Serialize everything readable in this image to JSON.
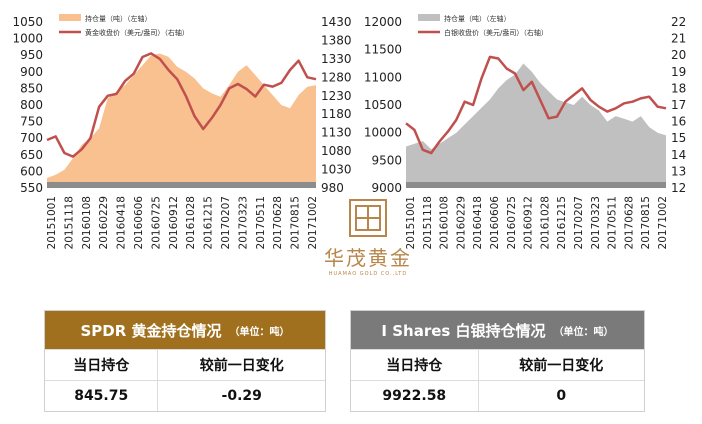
{
  "chart_data": [
    {
      "type": "area+line",
      "series": [
        {
          "name": "持仓量（吨）（左轴）",
          "kind": "area",
          "color": "#f9c090",
          "values": [
            580,
            590,
            605,
            640,
            680,
            700,
            730,
            820,
            840,
            860,
            890,
            920,
            950,
            955,
            945,
            915,
            900,
            880,
            850,
            835,
            825,
            860,
            900,
            920,
            890,
            860,
            830,
            800,
            790,
            830,
            855,
            860
          ]
        },
        {
          "name": "黄金收盘价（美元/盎司）（右轴）",
          "kind": "line",
          "color": "#c0504d",
          "values": [
            1110,
            1120,
            1075,
            1065,
            1085,
            1115,
            1200,
            1230,
            1235,
            1270,
            1290,
            1335,
            1345,
            1330,
            1300,
            1275,
            1230,
            1175,
            1140,
            1170,
            1205,
            1250,
            1262,
            1248,
            1228,
            1260,
            1255,
            1265,
            1300,
            1325,
            1280,
            1275
          ]
        }
      ],
      "x_labels": [
        "20151001",
        "20151118",
        "20160108",
        "20160229",
        "20160418",
        "20160606",
        "20160725",
        "20160912",
        "20161028",
        "20161215",
        "20170207",
        "20170323",
        "20170511",
        "20170628",
        "20170815",
        "20171002"
      ],
      "y_left": {
        "ticks": [
          550,
          600,
          650,
          700,
          750,
          800,
          850,
          900,
          950,
          1000,
          1050
        ],
        "range": [
          550,
          1050
        ]
      },
      "y_right": {
        "ticks": [
          980,
          1030,
          1080,
          1130,
          1180,
          1230,
          1280,
          1330,
          1380,
          1430
        ],
        "range": [
          980,
          1430
        ]
      }
    },
    {
      "type": "area+line",
      "series": [
        {
          "name": "持仓量（吨）（左轴）",
          "kind": "area",
          "color": "#c0c0c0",
          "values": [
            9750,
            9800,
            9850,
            9700,
            9800,
            9900,
            10000,
            10150,
            10300,
            10450,
            10600,
            10800,
            10950,
            11050,
            11250,
            11100,
            10900,
            10750,
            10600,
            10550,
            10500,
            10650,
            10500,
            10400,
            10200,
            10300,
            10250,
            10200,
            10300,
            10100,
            10000,
            9950
          ]
        },
        {
          "name": "白银收盘价（美元/盎司）（右轴）",
          "kind": "line",
          "color": "#c0504d",
          "values": [
            15.9,
            15.5,
            14.3,
            14.1,
            14.8,
            15.4,
            16.1,
            17.2,
            17.0,
            18.6,
            19.9,
            19.8,
            19.2,
            18.9,
            17.9,
            18.4,
            17.3,
            16.2,
            16.3,
            17.2,
            17.6,
            18.0,
            17.3,
            16.9,
            16.6,
            16.8,
            17.1,
            17.2,
            17.4,
            17.5,
            16.9,
            16.8
          ]
        }
      ],
      "x_labels": [
        "20151001",
        "20151118",
        "20160108",
        "20160229",
        "20160418",
        "20160606",
        "20160725",
        "20160912",
        "20161028",
        "20161215",
        "20170207",
        "20170323",
        "20170511",
        "20170628",
        "20170815",
        "20171002"
      ],
      "y_left": {
        "ticks": [
          9000,
          9500,
          10000,
          10500,
          11000,
          11500,
          12000
        ],
        "range": [
          9000,
          12000
        ]
      },
      "y_right": {
        "ticks": [
          12,
          13,
          14,
          15,
          16,
          17,
          18,
          19,
          20,
          21,
          22
        ],
        "range": [
          12,
          22
        ]
      }
    }
  ],
  "logo": {
    "name": "华茂黄金",
    "sub": "HUAMAO GOLD CO.,LTD"
  },
  "spdr": {
    "title": "SPDR 黄金持仓情况",
    "unit": "（单位：吨）",
    "color": "#a0701e",
    "col1": "当日持仓",
    "col2": "较前一日变化",
    "val1": "845.75",
    "val2": "-0.29"
  },
  "ishares": {
    "title": "I Shares 白银持仓情况",
    "unit": "（单位：吨）",
    "color": "#7a7a7a",
    "col1": "当日持仓",
    "col2": "较前一日变化",
    "val1": "9922.58",
    "val2": "0"
  }
}
